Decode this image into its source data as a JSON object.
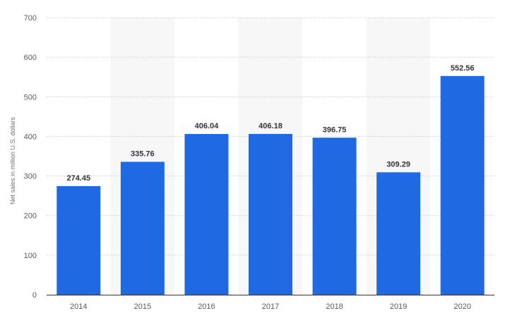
{
  "chart_data": {
    "type": "bar",
    "title": "",
    "xlabel": "",
    "ylabel": "Net sales in million U.S. dollars",
    "categories": [
      "2014",
      "2015",
      "2016",
      "2017",
      "2018",
      "2019",
      "2020"
    ],
    "values": [
      274.45,
      335.76,
      406.04,
      406.18,
      396.75,
      309.29,
      552.56
    ],
    "value_labels": [
      "274.45",
      "335.76",
      "406.04",
      "406.18",
      "396.75",
      "309.29",
      "552.56"
    ],
    "ylim": [
      0,
      700
    ],
    "yticks": [
      0,
      100,
      200,
      300,
      400,
      500,
      600,
      700
    ],
    "grid": true,
    "legend": "none",
    "colors": {
      "bar": "#1f6ae3",
      "band": "#f7f7f7",
      "grid": "#c9c9c9",
      "axis": "#333333"
    }
  }
}
